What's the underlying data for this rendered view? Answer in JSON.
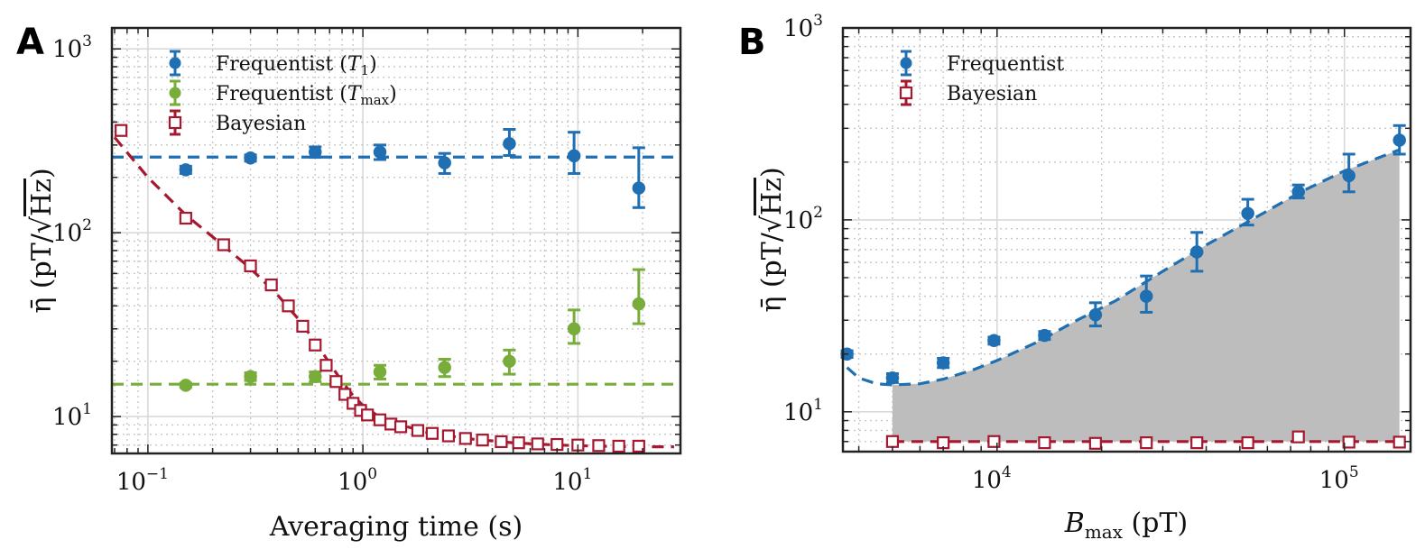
{
  "chart_data": [
    {
      "panel": "A",
      "type": "scatter",
      "xscale": "log",
      "yscale": "log",
      "xlabel": "Averaging time (s)",
      "ylabel": "η̄ (pT/√Hz)",
      "xlim": [
        0.068,
        30
      ],
      "ylim": [
        6.3,
        1300
      ],
      "xticks": [
        {
          "base": "10",
          "exp": "−1",
          "value": 0.1
        },
        {
          "base": "10",
          "exp": "0",
          "value": 1
        },
        {
          "base": "10",
          "exp": "1",
          "value": 10
        }
      ],
      "yticks": [
        {
          "base": "10",
          "exp": "1",
          "value": 10
        },
        {
          "base": "10",
          "exp": "2",
          "value": 100
        },
        {
          "base": "10",
          "exp": "3",
          "value": 1000
        }
      ],
      "legend": "top-left",
      "series": [
        {
          "name": "Frequentist (T1)",
          "label_main": "Frequentist (",
          "label_var": "T",
          "label_sub": "1",
          "label_close": ")",
          "color": "#1f6fb2",
          "marker": "filled-circle",
          "x": [
            0.15,
            0.3,
            0.6,
            1.2,
            2.4,
            4.8,
            9.6,
            19.2
          ],
          "y": [
            220,
            255,
            275,
            275,
            240,
            305,
            262,
            175
          ],
          "err_lo": [
            10,
            10,
            18,
            25,
            30,
            42,
            52,
            38
          ],
          "err_hi": [
            10,
            10,
            18,
            25,
            30,
            60,
            90,
            115
          ],
          "reference_line": 258
        },
        {
          "name": "Frequentist (Tmax)",
          "label_main": "Frequentist (",
          "label_var": "T",
          "label_sub": "max",
          "label_close": ")",
          "color": "#78ac3b",
          "marker": "filled-circle",
          "x": [
            0.15,
            0.3,
            0.6,
            1.2,
            2.4,
            4.8,
            9.6,
            19.2
          ],
          "y": [
            14.8,
            16.5,
            16.5,
            17.5,
            18.5,
            20,
            30,
            41
          ],
          "err_lo": [
            0.4,
            0.8,
            1.0,
            1.5,
            2.0,
            3.0,
            5.0,
            9.0
          ],
          "err_hi": [
            0.4,
            0.8,
            1.0,
            1.5,
            2.0,
            3.0,
            8.0,
            22.0
          ],
          "reference_line": 15
        },
        {
          "name": "Bayesian",
          "label_main": "Bayesian",
          "color": "#a5182f",
          "marker": "open-square",
          "x": [
            0.075,
            0.15,
            0.225,
            0.3,
            0.375,
            0.45,
            0.525,
            0.6,
            0.675,
            0.75,
            0.825,
            0.9,
            0.975,
            1.05,
            1.2,
            1.35,
            1.5,
            1.8,
            2.1,
            2.5,
            3.0,
            3.6,
            4.4,
            5.3,
            6.5,
            8.0,
            10.0,
            12.5,
            15.5,
            19.2
          ],
          "y": [
            360,
            120,
            86,
            66,
            52,
            40,
            31,
            24.5,
            19,
            15.5,
            13.2,
            11.8,
            10.8,
            10.2,
            9.6,
            9.1,
            8.8,
            8.4,
            8.1,
            7.85,
            7.6,
            7.45,
            7.3,
            7.2,
            7.1,
            7.05,
            7.0,
            6.95,
            6.9,
            6.9
          ],
          "fit_line": {
            "x": [
              0.07,
              0.1,
              0.15,
              0.2,
              0.3,
              0.4,
              0.5,
              0.6,
              0.7,
              0.8,
              0.9,
              1.0,
              1.2,
              1.5,
              2,
              3,
              5,
              8,
              12,
              20,
              28
            ],
            "y": [
              330,
              200,
              125,
              95,
              64,
              46,
              34,
              25.5,
              19.5,
              15.5,
              13,
              11.5,
              9.9,
              9.0,
              8.2,
              7.6,
              7.2,
              7.0,
              6.9,
              6.85,
              6.85
            ]
          }
        }
      ]
    },
    {
      "panel": "B",
      "type": "scatter",
      "xscale": "log",
      "yscale": "log",
      "xlabel_var": "B",
      "xlabel_sub": "max",
      "xlabel_unit": " (pT)",
      "ylabel": "η̄ (pT/√Hz)",
      "xlim": [
        3600,
        155000
      ],
      "ylim": [
        6.2,
        1000
      ],
      "xticks": [
        {
          "base": "10",
          "exp": "4",
          "value": 10000
        },
        {
          "base": "10",
          "exp": "5",
          "value": 100000
        }
      ],
      "yticks": [
        {
          "base": "10",
          "exp": "1",
          "value": 10
        },
        {
          "base": "10",
          "exp": "2",
          "value": 100
        },
        {
          "base": "10",
          "exp": "3",
          "value": 1000
        }
      ],
      "legend": "top-left",
      "shaded_region": {
        "color": "#bdbdbd",
        "between": [
          "Frequentist fit",
          "Bayesian fit"
        ],
        "x_start": 5000,
        "x_end": 144000
      },
      "series": [
        {
          "name": "Frequentist",
          "label_main": "Frequentist",
          "color": "#1f6fb2",
          "marker": "filled-circle",
          "x": [
            3700,
            5000,
            7000,
            9800,
            13700,
            19200,
            26900,
            37600,
            52700,
            73700,
            103000,
            144000
          ],
          "y": [
            20,
            15,
            18,
            23.5,
            25,
            32,
            40,
            68,
            108,
            140,
            170,
            260
          ],
          "err_lo": [
            0.8,
            0.8,
            1.0,
            1.0,
            1.2,
            4,
            7,
            14,
            14,
            10,
            30,
            40
          ],
          "err_hi": [
            0.8,
            0.8,
            1.0,
            1.0,
            1.2,
            5,
            11,
            18,
            20,
            12,
            50,
            50
          ],
          "fit_line": {
            "x": [
              3700,
              4000,
              4500,
              5000,
              6000,
              7000,
              8500,
              10000,
              13000,
              17000,
              22000,
              30000,
              40000,
              55000,
              75000,
              100000,
              144000
            ],
            "y": [
              17,
              15,
              14,
              13.8,
              14,
              14.8,
              16.5,
              18.5,
              23,
              30,
              38,
              54,
              74,
              102,
              140,
              180,
              232
            ]
          }
        },
        {
          "name": "Bayesian",
          "label_main": "Bayesian",
          "color": "#a5182f",
          "marker": "open-square",
          "x": [
            5000,
            7000,
            9800,
            13700,
            19200,
            26900,
            37600,
            52700,
            73700,
            103000,
            144000
          ],
          "y": [
            7.0,
            6.9,
            7.0,
            6.9,
            6.85,
            6.9,
            6.9,
            6.9,
            7.4,
            6.95,
            6.95
          ],
          "fit_line": {
            "x": [
              5000,
              144000
            ],
            "y": [
              7.0,
              7.0
            ]
          }
        }
      ]
    }
  ]
}
